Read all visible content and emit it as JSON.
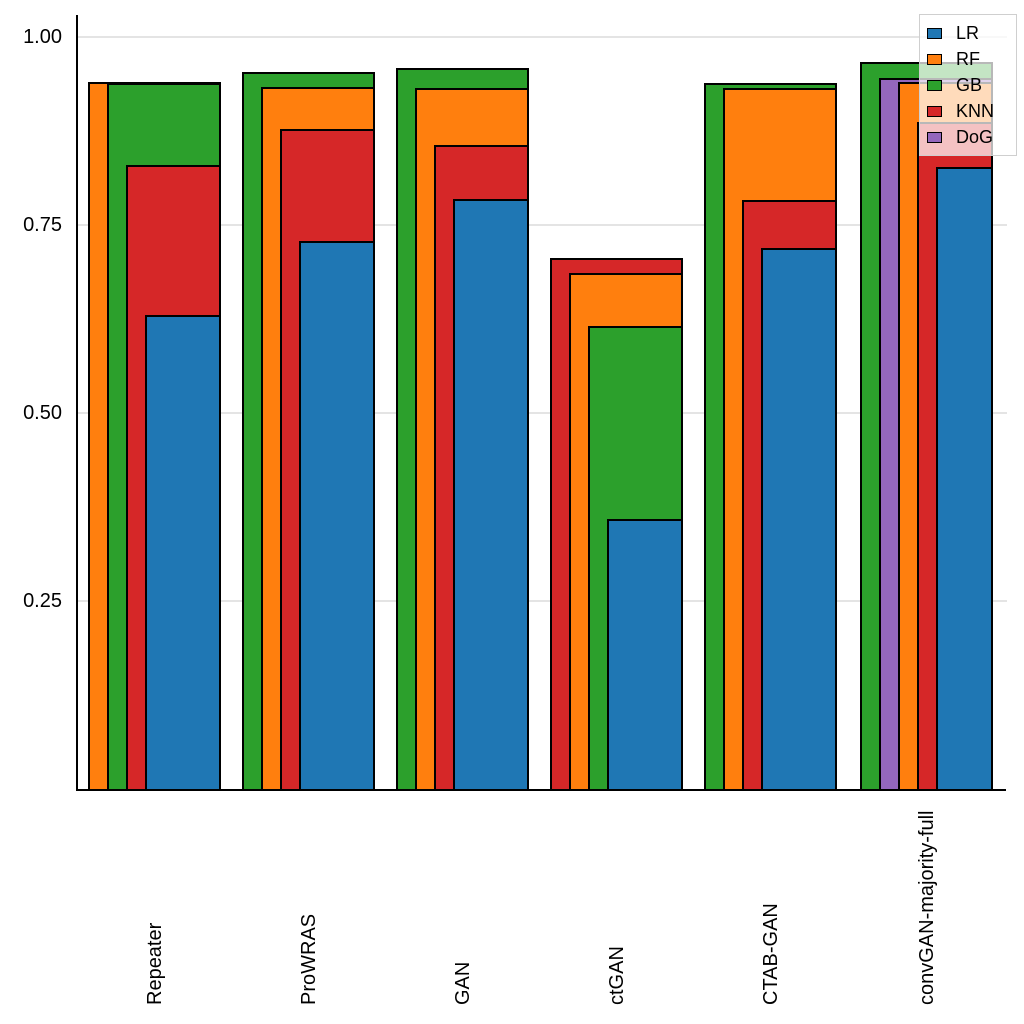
{
  "chart_data": {
    "type": "bar",
    "variant": "overlapping-nested-bars",
    "title": "",
    "xlabel": "",
    "ylabel": "",
    "ylim": [
      0,
      1.0
    ],
    "grid": true,
    "legend_position": "top-right",
    "yticks": [
      {
        "value": 0.25,
        "label": "0.25"
      },
      {
        "value": 0.5,
        "label": "0.50"
      },
      {
        "value": 0.75,
        "label": "0.75"
      },
      {
        "value": 1.0,
        "label": "1.00"
      }
    ],
    "categories": [
      "Repeater",
      "ProWRAS",
      "GAN",
      "ctGAN",
      "CTAB-GAN",
      "convGAN-majority-full"
    ],
    "series": [
      {
        "name": "LR",
        "color": "#1f77b4",
        "values": [
          0.63,
          0.729,
          0.785,
          0.359,
          0.719,
          0.827
        ]
      },
      {
        "name": "RF",
        "color": "#ff7f0e",
        "values": [
          0.94,
          0.933,
          0.932,
          0.686,
          0.932,
          0.94
        ]
      },
      {
        "name": "GB",
        "color": "#2ca02c",
        "values": [
          0.939,
          0.953,
          0.959,
          0.616,
          0.939,
          0.967
        ]
      },
      {
        "name": "KNN",
        "color": "#d62728",
        "values": [
          0.83,
          0.878,
          0.856,
          0.706,
          0.783,
          0.887
        ]
      },
      {
        "name": "DoG",
        "color": "#9467bd",
        "values": [
          null,
          null,
          null,
          null,
          null,
          0.945
        ]
      }
    ],
    "legend": [
      "LR",
      "RF",
      "GB",
      "KNN",
      "DoG"
    ],
    "colors": {
      "grid": "#e4e4e4",
      "axis": "#000000",
      "bar_edge": "#000000",
      "background": "#ffffff"
    }
  }
}
